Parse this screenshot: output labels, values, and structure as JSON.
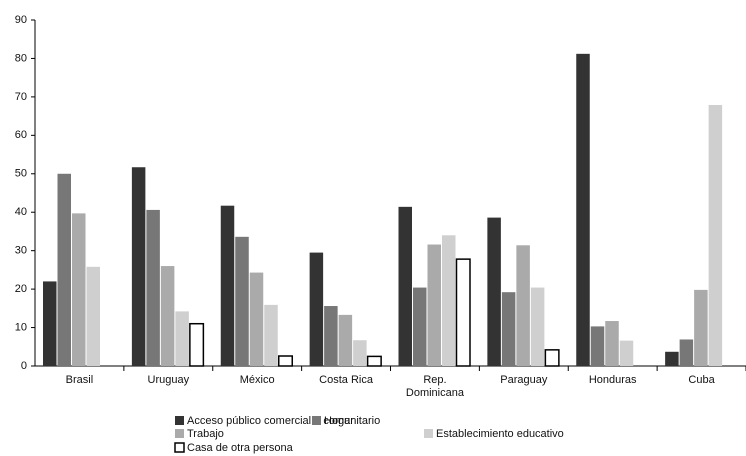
{
  "chart_data": {
    "type": "bar",
    "categories": [
      "Brasil",
      "Uruguay",
      "México",
      "Costa Rica",
      "Rep. Dominicana",
      "Paraguay",
      "Honduras",
      "Cuba"
    ],
    "series": [
      {
        "name": "Acceso público comercial o comunitario",
        "color": "#333333",
        "values": [
          22,
          51.7,
          41.7,
          29.5,
          41.4,
          38.6,
          81.2,
          3.7
        ]
      },
      {
        "name": "Hogar",
        "color": "#777777",
        "values": [
          50,
          40.6,
          33.6,
          15.6,
          20.4,
          19.2,
          10.3,
          6.9
        ]
      },
      {
        "name": "Trabajo",
        "color": "#aaaaaa",
        "values": [
          39.7,
          26,
          24.3,
          13.3,
          31.6,
          31.4,
          11.7,
          19.8
        ]
      },
      {
        "name": "Establecimiento educativo",
        "color": "#cfcfcf",
        "values": [
          25.8,
          14.2,
          15.9,
          6.7,
          34,
          20.4,
          6.6,
          67.9
        ]
      },
      {
        "name": "Casa de otra persona",
        "color": "#ffffff",
        "values": [
          null,
          11,
          2.6,
          2.5,
          27.8,
          4.2,
          null,
          null
        ]
      }
    ],
    "ylim": [
      0,
      90
    ],
    "yticks": [
      0,
      10,
      20,
      30,
      40,
      50,
      60,
      70,
      80,
      90
    ],
    "grid": false
  }
}
